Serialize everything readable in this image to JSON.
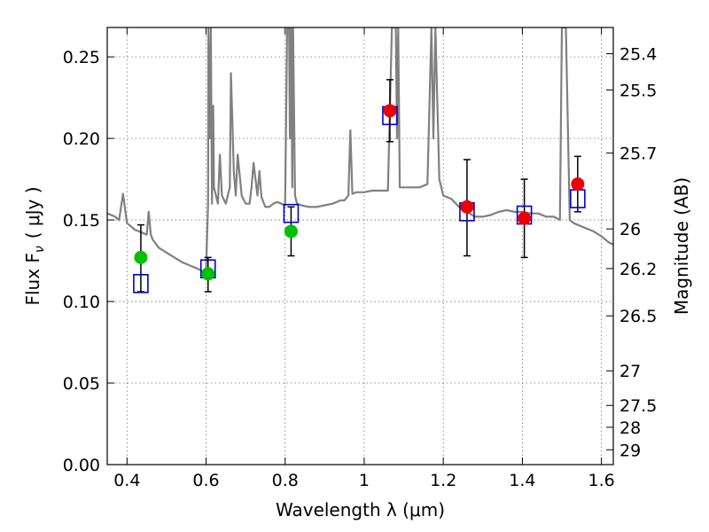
{
  "chart_data": {
    "type": "scatter",
    "xlabel": "Wavelength  λ (μm)",
    "ylabel": "Flux  F",
    "ylabel_sub": "ν",
    "ylabel_unit": "( μJy )",
    "y2label": "Magnitude (AB)",
    "xlim": [
      0.35,
      1.63
    ],
    "ylim": [
      0.0,
      0.268
    ],
    "grid": true,
    "x_ticks": [
      {
        "value": 0.4,
        "label": "0.4"
      },
      {
        "value": 0.6,
        "label": "0.6"
      },
      {
        "value": 0.8,
        "label": "0.8"
      },
      {
        "value": 1.0,
        "label": "1"
      },
      {
        "value": 1.2,
        "label": "1.2"
      },
      {
        "value": 1.4,
        "label": "1.4"
      },
      {
        "value": 1.6,
        "label": "1.6"
      }
    ],
    "y_ticks": [
      {
        "value": 0.0,
        "label": "0.00"
      },
      {
        "value": 0.05,
        "label": "0.05"
      },
      {
        "value": 0.1,
        "label": "0.10"
      },
      {
        "value": 0.15,
        "label": "0.15"
      },
      {
        "value": 0.2,
        "label": "0.20"
      },
      {
        "value": 0.25,
        "label": "0.25"
      }
    ],
    "y2_ticks": [
      {
        "flux": 0.2519,
        "label": "25.4"
      },
      {
        "flux": 0.2297,
        "label": "25.5"
      },
      {
        "flux": 0.191,
        "label": "25.7"
      },
      {
        "flux": 0.1445,
        "label": "26"
      },
      {
        "flux": 0.1202,
        "label": "26.2"
      },
      {
        "flux": 0.0912,
        "label": "26.5"
      },
      {
        "flux": 0.0575,
        "label": "27"
      },
      {
        "flux": 0.0363,
        "label": "27.5"
      },
      {
        "flux": 0.0229,
        "label": "28"
      },
      {
        "flux": 0.0091,
        "label": "29"
      }
    ],
    "series": [
      {
        "style": "line",
        "color": "#808080",
        "x": [
          0.35,
          0.37,
          0.38,
          0.39,
          0.4,
          0.41,
          0.42,
          0.43,
          0.44,
          0.45,
          0.455,
          0.46,
          0.465,
          0.48,
          0.5,
          0.52,
          0.54,
          0.56,
          0.58,
          0.595,
          0.6,
          0.605,
          0.606,
          0.61,
          0.612,
          0.615,
          0.618,
          0.62,
          0.625,
          0.63,
          0.635,
          0.64,
          0.65,
          0.66,
          0.663,
          0.67,
          0.675,
          0.68,
          0.69,
          0.7,
          0.71,
          0.715,
          0.72,
          0.73,
          0.735,
          0.74,
          0.75,
          0.76,
          0.77,
          0.78,
          0.79,
          0.8,
          0.805,
          0.81,
          0.812,
          0.815,
          0.818,
          0.82,
          0.825,
          0.83,
          0.84,
          0.86,
          0.88,
          0.9,
          0.92,
          0.94,
          0.95,
          0.96,
          0.965,
          0.97,
          0.98,
          1.0,
          1.02,
          1.04,
          1.055,
          1.06,
          1.07,
          1.075,
          1.08,
          1.083,
          1.086,
          1.09,
          1.1,
          1.12,
          1.14,
          1.16,
          1.17,
          1.175,
          1.18,
          1.19,
          1.2,
          1.22,
          1.24,
          1.26,
          1.28,
          1.3,
          1.32,
          1.34,
          1.36,
          1.38,
          1.4,
          1.42,
          1.44,
          1.46,
          1.48,
          1.495,
          1.5,
          1.505,
          1.51,
          1.52,
          1.53,
          1.54,
          1.56,
          1.58,
          1.6,
          1.62,
          1.63
        ],
        "y": [
          0.154,
          0.152,
          0.15,
          0.166,
          0.148,
          0.146,
          0.144,
          0.143,
          0.142,
          0.141,
          0.155,
          0.141,
          0.138,
          0.133,
          0.13,
          0.127,
          0.124,
          0.122,
          0.12,
          0.118,
          0.119,
          0.16,
          0.27,
          0.2,
          0.27,
          0.16,
          0.22,
          0.17,
          0.165,
          0.16,
          0.19,
          0.165,
          0.16,
          0.17,
          0.24,
          0.18,
          0.165,
          0.19,
          0.165,
          0.16,
          0.16,
          0.17,
          0.185,
          0.165,
          0.18,
          0.164,
          0.158,
          0.158,
          0.16,
          0.161,
          0.16,
          0.159,
          0.27,
          0.27,
          0.2,
          0.27,
          0.17,
          0.27,
          0.165,
          0.16,
          0.159,
          0.158,
          0.158,
          0.159,
          0.16,
          0.162,
          0.162,
          0.165,
          0.205,
          0.166,
          0.167,
          0.167,
          0.168,
          0.168,
          0.168,
          0.168,
          0.27,
          0.27,
          0.27,
          0.2,
          0.27,
          0.17,
          0.17,
          0.17,
          0.17,
          0.172,
          0.27,
          0.2,
          0.27,
          0.175,
          0.165,
          0.163,
          0.158,
          0.155,
          0.152,
          0.152,
          0.153,
          0.155,
          0.156,
          0.155,
          0.155,
          0.154,
          0.154,
          0.152,
          0.152,
          0.15,
          0.27,
          0.27,
          0.27,
          0.15,
          0.148,
          0.147,
          0.145,
          0.143,
          0.14,
          0.136,
          0.135
        ]
      },
      {
        "style": "markers",
        "marker": "open-square",
        "color": "#0000cc",
        "x": [
          0.435,
          0.605,
          0.815,
          1.065,
          1.26,
          1.405,
          1.54
        ],
        "y": [
          0.111,
          0.12,
          0.154,
          0.214,
          0.155,
          0.153,
          0.163
        ]
      },
      {
        "style": "markers",
        "marker": "filled-circle",
        "color": "#00c000",
        "x": [
          0.435,
          0.605,
          0.815
        ],
        "y": [
          0.127,
          0.117,
          0.143
        ]
      },
      {
        "style": "markers",
        "marker": "filled-circle",
        "color": "#ee0000",
        "x": [
          1.065,
          1.26,
          1.405,
          1.54
        ],
        "y": [
          0.217,
          0.158,
          0.151,
          0.172
        ]
      },
      {
        "style": "errorbars",
        "color": "#000000",
        "x": [
          0.435,
          0.605,
          0.815,
          1.065,
          1.26,
          1.405,
          1.54
        ],
        "y_low": [
          0.106,
          0.106,
          0.128,
          0.198,
          0.128,
          0.127,
          0.155
        ],
        "y_high": [
          0.147,
          0.127,
          0.158,
          0.236,
          0.187,
          0.175,
          0.189
        ]
      }
    ]
  }
}
